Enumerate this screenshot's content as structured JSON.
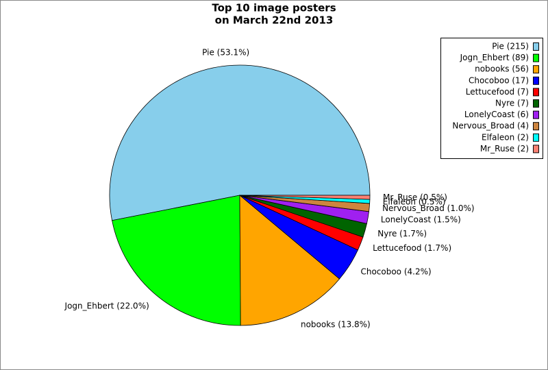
{
  "chart_data": {
    "type": "pie",
    "title": "Top 10 image posters",
    "subtitle": "on March 22nd 2013",
    "values": [
      53.1,
      22.0,
      13.8,
      4.2,
      1.7,
      1.7,
      1.5,
      1.0,
      0.5,
      0.5
    ],
    "value_labels": [
      "Pie (53.1%)",
      "Jogn_Ehbert (22.0%)",
      "nobooks (13.8%)",
      "Chocoboo (4.2%)",
      "Lettucefood (1.7%)",
      "Nyre (1.7%)",
      "LonelyCoast (1.5%)",
      "Nervous_Broad (1.0%)",
      "Elfaleon (0.5%)",
      "Mr_Ruse (0.5%)"
    ],
    "legend_labels": [
      "Pie (215)",
      "Jogn_Ehbert (89)",
      "nobooks (56)",
      "Chocoboo (17)",
      "Lettucefood (7)",
      "Nyre (7)",
      "LonelyCoast (6)",
      "Nervous_Broad (4)",
      "Elfaleon (2)",
      "Mr_Ruse (2)"
    ],
    "colors": [
      "#87ceeb",
      "#00ff00",
      "#ffa500",
      "#0000ff",
      "#ff0000",
      "#006400",
      "#a020f0",
      "#cd853f",
      "#00ffff",
      "#fa8072"
    ],
    "legend": "upper right"
  }
}
